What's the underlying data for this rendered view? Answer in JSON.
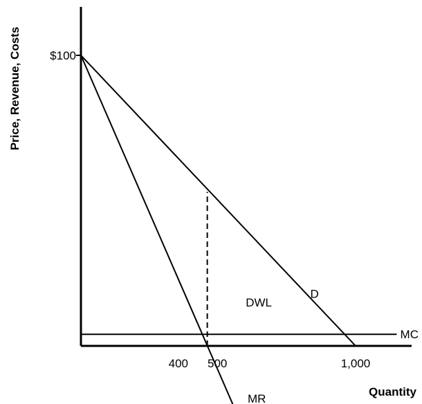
{
  "chart_data": {
    "type": "line",
    "title": "",
    "xlabel": "Quantity",
    "ylabel": "Price, Revenue, Costs",
    "xlim": [
      0,
      1150
    ],
    "ylim": [
      -28,
      120
    ],
    "x_ticks": [
      {
        "value": 400,
        "label": "400"
      },
      {
        "value": 500,
        "label": "500"
      },
      {
        "value": 1000,
        "label": "1,000"
      }
    ],
    "y_ticks": [
      {
        "value": 100,
        "label": "$100"
      }
    ],
    "series": [
      {
        "name": "D",
        "points": [
          [
            0,
            100
          ],
          [
            1000,
            0
          ]
        ]
      },
      {
        "name": "MR",
        "points": [
          [
            0,
            100
          ],
          [
            580,
            -26
          ]
        ]
      },
      {
        "name": "MC",
        "points": [
          [
            0,
            4
          ],
          [
            1150,
            4
          ]
        ]
      }
    ],
    "dashed_line": {
      "x": 460,
      "y_from": 0,
      "y_to": 53
    },
    "annotations": [
      {
        "text": "DWL",
        "x": 600,
        "y": 15
      },
      {
        "text": "D",
        "x": 835,
        "y": 18
      },
      {
        "text": "MC",
        "x": 1170,
        "y": 4
      },
      {
        "text": "MR",
        "x": 600,
        "y": -25
      }
    ],
    "grid": false,
    "legend": "none"
  }
}
